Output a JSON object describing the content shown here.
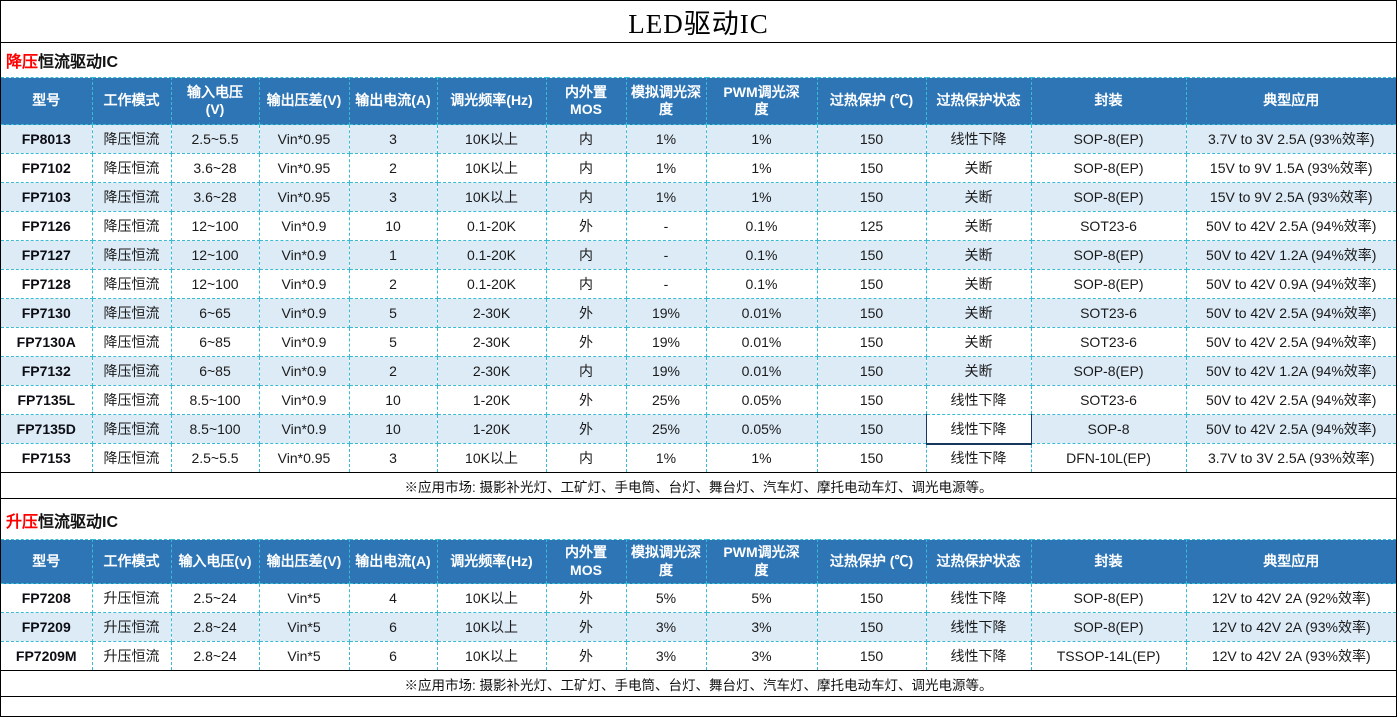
{
  "title": "LED驱动IC",
  "colors": {
    "header_bg": "#2E75B6",
    "row_shade": "#DDEBF7",
    "dashed_border": "#38BCD6",
    "accent_red": "#FF0000",
    "highlight_box_border": "#17375E"
  },
  "sections": [
    {
      "label_red": "降压",
      "label_rest": "恒流驱动IC",
      "columns": [
        "型号",
        "工作模式",
        "输入电压\n(V)",
        "输出压差(V)",
        "输出电流(A)",
        "调光频率(Hz)",
        "内外置\nMOS",
        "模拟调光深\n度",
        "PWM调光深\n度",
        "过热保护 (℃)",
        "过热保护状态",
        "封装",
        "典型应用"
      ],
      "rows": [
        [
          "FP8013",
          "降压恒流",
          "2.5~5.5",
          "Vin*0.95",
          "3",
          "10K以上",
          "内",
          "1%",
          "1%",
          "150",
          "线性下降",
          "SOP-8(EP)",
          "3.7V to 3V 2.5A  (93%效率)"
        ],
        [
          "FP7102",
          "降压恒流",
          "3.6~28",
          "Vin*0.95",
          "2",
          "10K以上",
          "内",
          "1%",
          "1%",
          "150",
          "关断",
          "SOP-8(EP)",
          "15V to 9V 1.5A  (93%效率)"
        ],
        [
          "FP7103",
          "降压恒流",
          "3.6~28",
          "Vin*0.95",
          "3",
          "10K以上",
          "内",
          "1%",
          "1%",
          "150",
          "关断",
          "SOP-8(EP)",
          "15V to 9V 2.5A  (93%效率)"
        ],
        [
          "FP7126",
          "降压恒流",
          "12~100",
          "Vin*0.9",
          "10",
          "0.1-20K",
          "外",
          "-",
          "0.1%",
          "125",
          "关断",
          "SOT23-6",
          "50V to 42V 2.5A  (94%效率)"
        ],
        [
          "FP7127",
          "降压恒流",
          "12~100",
          "Vin*0.9",
          "1",
          "0.1-20K",
          "内",
          "-",
          "0.1%",
          "150",
          "关断",
          "SOP-8(EP)",
          "50V to 42V 1.2A  (94%效率)"
        ],
        [
          "FP7128",
          "降压恒流",
          "12~100",
          "Vin*0.9",
          "2",
          "0.1-20K",
          "内",
          "-",
          "0.1%",
          "150",
          "关断",
          "SOP-8(EP)",
          "50V to 42V 0.9A  (94%效率)"
        ],
        [
          "FP7130",
          "降压恒流",
          "6~65",
          "Vin*0.9",
          "5",
          "2-30K",
          "外",
          "19%",
          "0.01%",
          "150",
          "关断",
          "SOT23-6",
          "50V to 42V 2.5A  (94%效率)"
        ],
        [
          "FP7130A",
          "降压恒流",
          "6~85",
          "Vin*0.9",
          "5",
          "2-30K",
          "外",
          "19%",
          "0.01%",
          "150",
          "关断",
          "SOT23-6",
          "50V to 42V 2.5A  (94%效率)"
        ],
        [
          "FP7132",
          "降压恒流",
          "6~85",
          "Vin*0.9",
          "2",
          "2-30K",
          "内",
          "19%",
          "0.01%",
          "150",
          "关断",
          "SOP-8(EP)",
          "50V to 42V 1.2A  (94%效率)"
        ],
        [
          "FP7135L",
          "降压恒流",
          "8.5~100",
          "Vin*0.9",
          "10",
          "1-20K",
          "外",
          "25%",
          "0.05%",
          "150",
          "线性下降",
          "SOT23-6",
          "50V to 42V 2.5A  (94%效率)"
        ],
        [
          "FP7135D",
          "降压恒流",
          "8.5~100",
          "Vin*0.9",
          "10",
          "1-20K",
          "外",
          "25%",
          "0.05%",
          "150",
          "线性下降",
          "SOP-8",
          "50V to 42V 2.5A  (94%效率)"
        ],
        [
          "FP7153",
          "降压恒流",
          "2.5~5.5",
          "Vin*0.95",
          "3",
          "10K以上",
          "内",
          "1%",
          "1%",
          "150",
          "线性下降",
          "DFN-10L(EP)",
          "3.7V to 3V 2.5A  (93%效率)"
        ]
      ],
      "highlight_cell": {
        "row": 10,
        "col": 10
      },
      "footnote": "※应用市场: 摄影补光灯、工矿灯、手电筒、台灯、舞台灯、汽车灯、摩托电动车灯、调光电源等。"
    },
    {
      "label_red": "升压",
      "label_rest": "恒流驱动IC",
      "columns": [
        "型号",
        "工作模式",
        "输入电压(v)",
        "输出压差(V)",
        "输出电流(A)",
        "调光频率(Hz)",
        "内外置\nMOS",
        "模拟调光深\n度",
        "PWM调光深\n度",
        "过热保护 (℃)",
        "过热保护状态",
        "封装",
        "典型应用"
      ],
      "rows": [
        [
          "FP7208",
          "升压恒流",
          "2.5~24",
          "Vin*5",
          "4",
          "10K以上",
          "外",
          "5%",
          "5%",
          "150",
          "线性下降",
          "SOP-8(EP)",
          "12V to 42V 2A   (92%效率)"
        ],
        [
          "FP7209",
          "升压恒流",
          "2.8~24",
          "Vin*5",
          "6",
          "10K以上",
          "外",
          "3%",
          "3%",
          "150",
          "线性下降",
          "SOP-8(EP)",
          "12V to 42V 2A   (93%效率)"
        ],
        [
          "FP7209M",
          "升压恒流",
          "2.8~24",
          "Vin*5",
          "6",
          "10K以上",
          "外",
          "3%",
          "3%",
          "150",
          "线性下降",
          "TSSOP-14L(EP)",
          "12V to 42V 2A   (93%效率)"
        ]
      ],
      "footnote": "※应用市场: 摄影补光灯、工矿灯、手电筒、台灯、舞台灯、汽车灯、摩托电动车灯、调光电源等。"
    }
  ]
}
